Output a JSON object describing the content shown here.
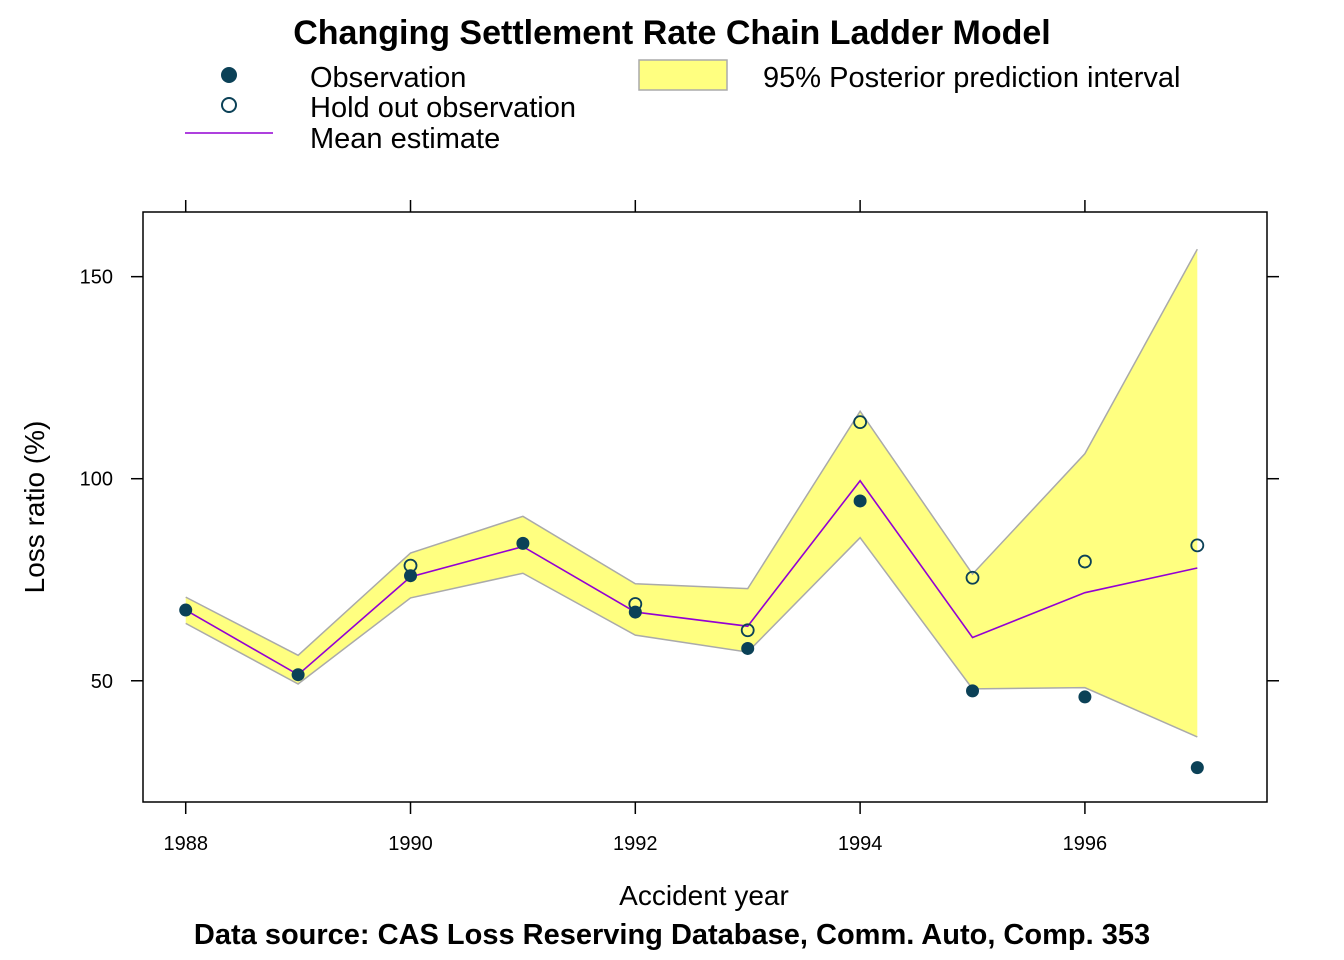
{
  "chart_data": {
    "type": "line",
    "title": "Changing Settlement Rate Chain Ladder Model",
    "xlabel": "Accident year",
    "ylabel": "Loss ratio (%)",
    "caption": "Data source: CAS Loss Reserving Database, Comm. Auto, Comp. 353",
    "xlim": [
      1987.62,
      1997.62
    ],
    "ylim": [
      20,
      166
    ],
    "x_ticks": [
      "1988",
      "1990",
      "1992",
      "1994",
      "1996"
    ],
    "y_ticks": [
      "50",
      "100",
      "150"
    ],
    "grid": false,
    "legend": {
      "placement": "top",
      "observation": "Observation",
      "hold_out": "Hold out observation",
      "mean": "Mean estimate",
      "interval": "95% Posterior prediction interval"
    },
    "colors": {
      "observation": "#0b4157",
      "mean": "#9400d3",
      "interval_fill": "#ffff80",
      "interval_stroke": "#aaaaaa"
    },
    "series": [
      {
        "name": "Observation",
        "x": [
          1988,
          1989,
          1990,
          1991,
          1992,
          1993,
          1994,
          1995,
          1996,
          1997
        ],
        "y": [
          67.5,
          51.5,
          76.0,
          84.0,
          67.0,
          58.0,
          94.5,
          47.5,
          46.0,
          28.5
        ]
      },
      {
        "name": "Hold out observation",
        "x": [
          1990,
          1992,
          1993,
          1994,
          1995,
          1996,
          1997
        ],
        "y": [
          78.5,
          69.0,
          62.5,
          114.0,
          75.5,
          79.5,
          83.5
        ]
      },
      {
        "name": "Mean estimate",
        "x": [
          1988,
          1989,
          1990,
          1991,
          1992,
          1993,
          1994,
          1995,
          1996,
          1997
        ],
        "y": [
          67.5,
          51.5,
          75.7,
          83.2,
          67.0,
          63.5,
          99.5,
          60.7,
          71.8,
          77.9
        ]
      }
    ],
    "interval": {
      "name": "95% Posterior prediction interval",
      "x": [
        1988,
        1989,
        1990,
        1991,
        1992,
        1993,
        1994,
        1995,
        1996,
        1997
      ],
      "lower": [
        64.2,
        49.2,
        70.5,
        76.6,
        61.3,
        57.1,
        85.4,
        48.0,
        48.3,
        36.1
      ],
      "upper": [
        70.7,
        56.3,
        81.6,
        90.7,
        74.0,
        72.8,
        116.7,
        76.4,
        106.2,
        156.8
      ]
    }
  }
}
